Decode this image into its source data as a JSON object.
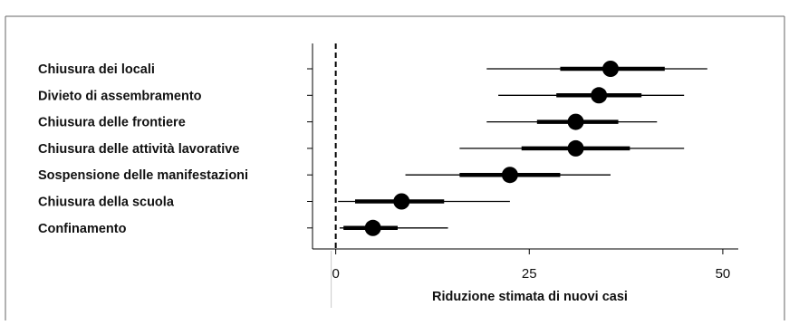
{
  "chart_data": {
    "type": "forest",
    "xlabel": "Riduzione stimata di nuovi casi",
    "xlim": [
      -3,
      52
    ],
    "xticks": [
      0,
      25,
      50
    ],
    "reference_line": 0,
    "grid": false,
    "categories": [
      "Chiusura dei locali",
      "Divieto di assembramento",
      "Chiusura delle frontiere",
      "Chiusura delle attività lavorative",
      "Sospensione delle manifestazioni",
      "Chiusura della scuola",
      "Confinamento"
    ],
    "points": [
      35.5,
      34,
      31,
      31,
      22.5,
      8.5,
      4.8
    ],
    "inner_interval": [
      [
        29,
        42.5
      ],
      [
        28.5,
        39.5
      ],
      [
        26,
        36.5
      ],
      [
        24,
        38
      ],
      [
        16,
        29
      ],
      [
        2.5,
        14
      ],
      [
        1,
        8
      ]
    ],
    "outer_interval": [
      [
        19.5,
        48
      ],
      [
        21,
        45
      ],
      [
        19.5,
        41.5
      ],
      [
        16,
        45
      ],
      [
        9,
        35.5
      ],
      [
        0.3,
        22.5
      ],
      [
        0.5,
        14.5
      ]
    ]
  },
  "colors": {
    "marks": "#000000",
    "border": "#666666"
  }
}
